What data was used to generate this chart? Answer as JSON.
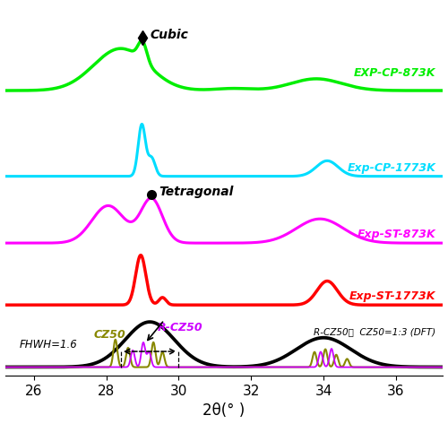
{
  "x_min": 25.2,
  "x_max": 37.3,
  "xlabel": "2θ(° )",
  "xlabel_fontsize": 12,
  "tick_fontsize": 11,
  "line_width": 2.2,
  "colors": {
    "green": "#00ee00",
    "cyan": "#00ddff",
    "magenta": "#ff00ff",
    "red": "#ff0000",
    "black": "#000000",
    "olive": "#888800",
    "purple": "#cc00ff"
  },
  "labels": {
    "green": "EXP-CP-873K",
    "cyan": "Exp-CP-1773K",
    "magenta": "Exp-ST-873K",
    "red": "Exp-ST-1773K",
    "black": "R-CZ50：  CZ50=1:3 (DFT)"
  },
  "offsets": {
    "green": 5.8,
    "cyan": 4.0,
    "magenta": 2.6,
    "red": 1.3,
    "black": 0.0
  },
  "xticks": [
    26,
    28,
    30,
    32,
    34,
    36
  ]
}
